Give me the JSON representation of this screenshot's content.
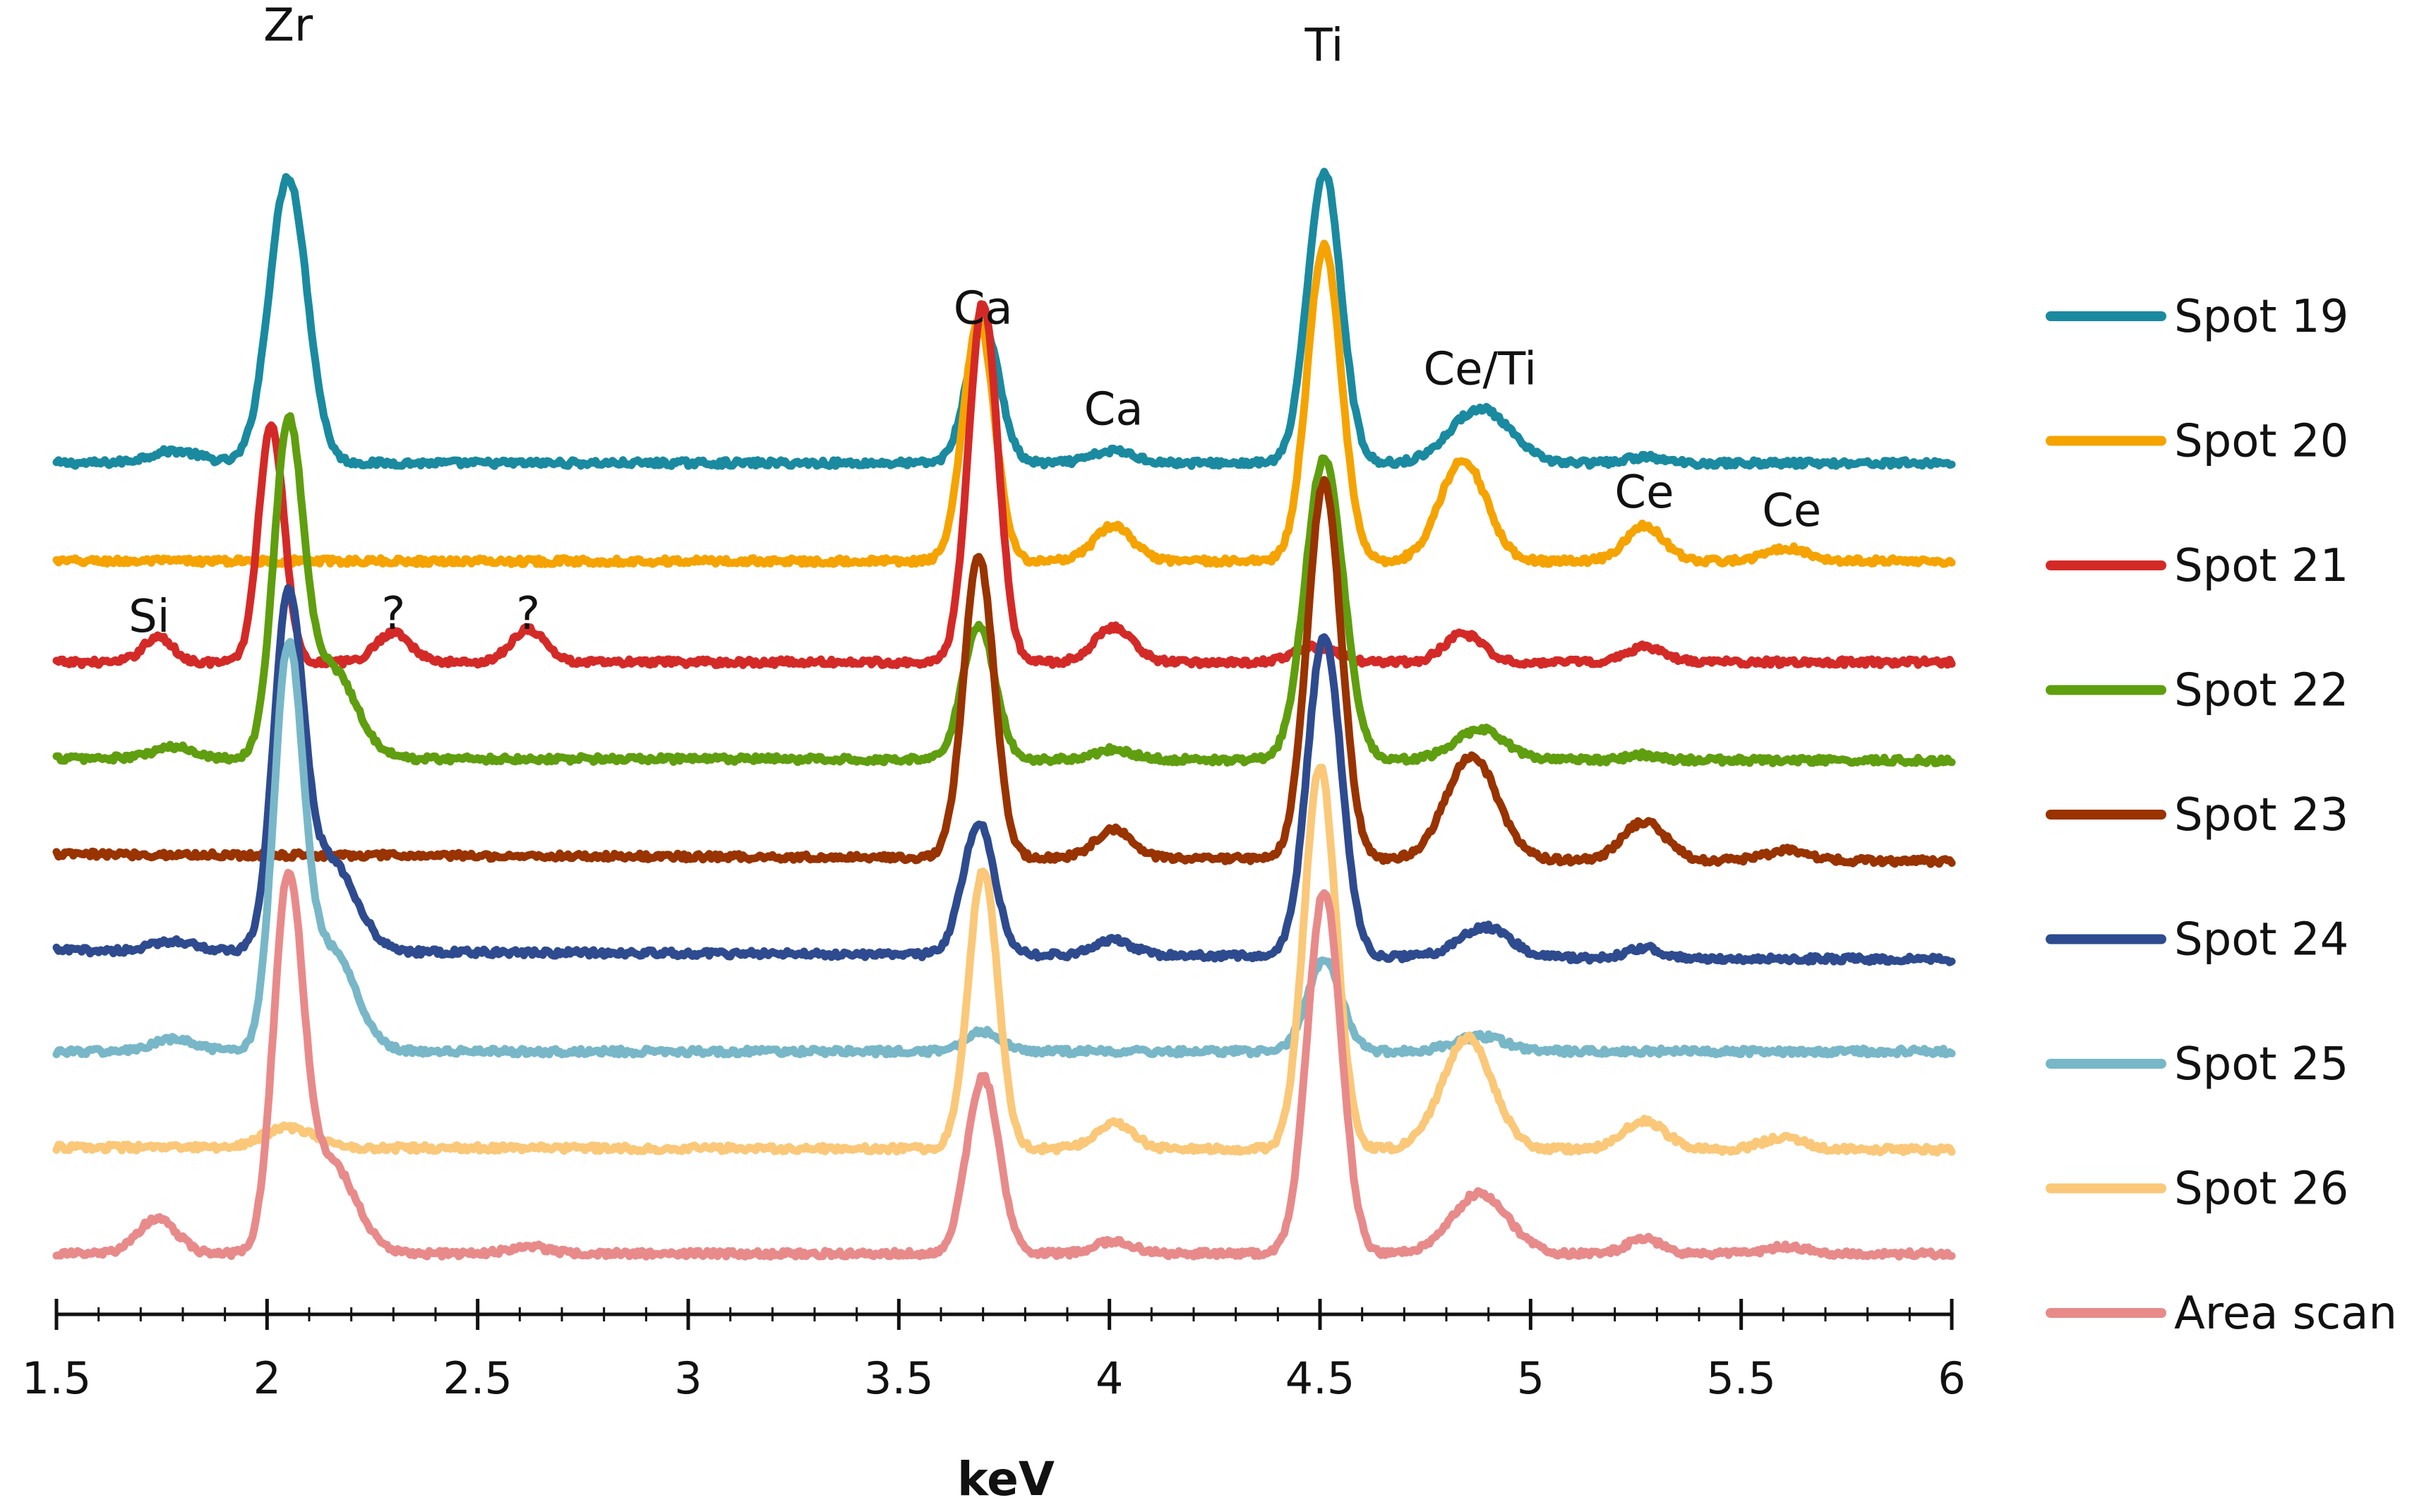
{
  "chart_data": {
    "type": "line",
    "title": "",
    "xlabel": "keV",
    "ylabel": "",
    "xlim": [
      1.5,
      6
    ],
    "xticks": [
      "1.5",
      "2",
      "2.5",
      "3",
      "3.5",
      "4",
      "4.5",
      "5",
      "5.5",
      "6"
    ],
    "grid": false,
    "legend_position": "right",
    "y_units": "relative intensity, curves vertically offset",
    "annotations": [
      {
        "text": "Zr",
        "x": 2.05,
        "y": 9.6
      },
      {
        "text": "Ca",
        "x": 3.7,
        "y": 6.8
      },
      {
        "text": "Ca",
        "x": 4.01,
        "y": 5.8
      },
      {
        "text": "Ti",
        "x": 4.51,
        "y": 9.4
      },
      {
        "text": "Ce/Ti",
        "x": 4.88,
        "y": 6.2
      },
      {
        "text": "Ce",
        "x": 5.27,
        "y": 4.98
      },
      {
        "text": "Ce",
        "x": 5.62,
        "y": 4.8
      },
      {
        "text": "Si",
        "x": 1.72,
        "y": 3.75
      },
      {
        "text": "?",
        "x": 2.3,
        "y": 3.78
      },
      {
        "text": "?",
        "x": 2.62,
        "y": 3.78
      }
    ],
    "series": [
      {
        "name": "Spot 19",
        "color": "#1a8aa0",
        "baseline": 5.42,
        "drift": 0.0,
        "peaks": [
          [
            1.78,
            0.12,
            0.06
          ],
          [
            2.05,
            2.83,
            0.045
          ],
          [
            3.7,
            1.38,
            0.038
          ],
          [
            4.01,
            0.12,
            0.05
          ],
          [
            4.51,
            2.88,
            0.04
          ],
          [
            4.88,
            0.54,
            0.07
          ],
          [
            5.27,
            0.06,
            0.04
          ]
        ]
      },
      {
        "name": "Spot 20",
        "color": "#f5a300",
        "baseline": 4.45,
        "drift": 0.0,
        "peaks": [
          [
            3.69,
            2.37,
            0.037
          ],
          [
            4.01,
            0.35,
            0.045
          ],
          [
            4.51,
            3.12,
            0.04
          ],
          [
            4.84,
            1.0,
            0.055
          ],
          [
            5.27,
            0.35,
            0.045
          ],
          [
            5.61,
            0.13,
            0.05
          ]
        ]
      },
      {
        "name": "Spot 21",
        "color": "#d42a27",
        "baseline": 3.45,
        "drift": 0.0,
        "peaks": [
          [
            1.74,
            0.25,
            0.035
          ],
          [
            2.01,
            2.36,
            0.03
          ],
          [
            2.3,
            0.3,
            0.04
          ],
          [
            2.62,
            0.33,
            0.04
          ],
          [
            3.7,
            3.55,
            0.035
          ],
          [
            4.01,
            0.35,
            0.045
          ],
          [
            4.49,
            0.15,
            0.05
          ],
          [
            4.84,
            0.28,
            0.045
          ],
          [
            5.27,
            0.15,
            0.045
          ]
        ]
      },
      {
        "name": "Spot 22",
        "color": "#5f9e0e",
        "baseline": 2.5,
        "drift": -0.005,
        "peaks": [
          [
            1.78,
            0.11,
            0.05
          ],
          [
            2.05,
            3.14,
            0.035
          ],
          [
            2.15,
            0.9,
            0.06
          ],
          [
            3.69,
            1.33,
            0.038
          ],
          [
            4.01,
            0.1,
            0.045
          ],
          [
            4.51,
            2.98,
            0.045
          ],
          [
            4.88,
            0.3,
            0.06
          ],
          [
            5.27,
            0.05,
            0.04
          ]
        ]
      },
      {
        "name": "Spot 23",
        "color": "#993300",
        "baseline": 1.55,
        "drift": -0.015,
        "peaks": [
          [
            3.69,
            2.98,
            0.036
          ],
          [
            4.01,
            0.28,
            0.045
          ],
          [
            4.51,
            3.73,
            0.04
          ],
          [
            4.86,
            1.03,
            0.06
          ],
          [
            5.27,
            0.38,
            0.05
          ],
          [
            5.61,
            0.1,
            0.05
          ]
        ]
      },
      {
        "name": "Spot 24",
        "color": "#2e4b8f",
        "baseline": 0.6,
        "drift": -0.02,
        "peaks": [
          [
            1.78,
            0.1,
            0.05
          ],
          [
            2.05,
            3.36,
            0.035
          ],
          [
            2.15,
            0.9,
            0.06
          ],
          [
            3.69,
            1.3,
            0.038
          ],
          [
            4.01,
            0.15,
            0.045
          ],
          [
            4.51,
            3.18,
            0.04
          ],
          [
            4.89,
            0.3,
            0.06
          ],
          [
            5.27,
            0.1,
            0.04
          ]
        ]
      },
      {
        "name": "Spot 25",
        "color": "#78b7c8",
        "baseline": -0.4,
        "drift": 0.0,
        "peaks": [
          [
            1.78,
            0.12,
            0.05
          ],
          [
            2.05,
            3.8,
            0.035
          ],
          [
            2.15,
            1.0,
            0.06
          ],
          [
            3.7,
            0.2,
            0.04
          ],
          [
            4.51,
            0.9,
            0.04
          ],
          [
            4.88,
            0.15,
            0.06
          ]
        ]
      },
      {
        "name": "Spot 26",
        "color": "#fac878",
        "baseline": -1.35,
        "drift": -0.005,
        "peaks": [
          [
            2.05,
            0.2,
            0.06
          ],
          [
            3.7,
            2.75,
            0.035
          ],
          [
            4.01,
            0.25,
            0.045
          ],
          [
            4.5,
            3.78,
            0.038
          ],
          [
            4.85,
            1.1,
            0.06
          ],
          [
            5.27,
            0.28,
            0.05
          ],
          [
            5.6,
            0.12,
            0.05
          ]
        ]
      },
      {
        "name": "Area scan",
        "color": "#e88a8a",
        "baseline": -2.4,
        "drift": 0.0,
        "peaks": [
          [
            1.74,
            0.35,
            0.045
          ],
          [
            2.05,
            3.56,
            0.035
          ],
          [
            2.15,
            0.9,
            0.06
          ],
          [
            2.62,
            0.07,
            0.05
          ],
          [
            3.7,
            1.75,
            0.038
          ],
          [
            4.01,
            0.12,
            0.045
          ],
          [
            4.51,
            3.59,
            0.04
          ],
          [
            4.88,
            0.6,
            0.065
          ],
          [
            5.27,
            0.15,
            0.04
          ],
          [
            5.61,
            0.07,
            0.05
          ]
        ]
      }
    ]
  }
}
